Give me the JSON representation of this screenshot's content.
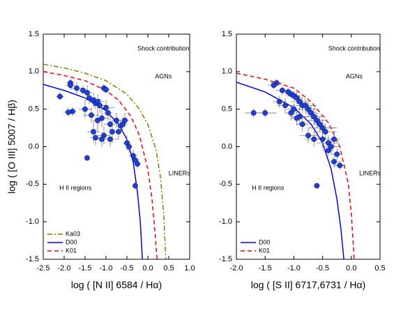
{
  "chart_data": [
    {
      "type": "scatter",
      "xlabel": "log ( [N II] 6584 / Hα)",
      "ylabel": "log ( [O III] 5007 / Hβ)",
      "xlim": [
        -2.5,
        1.0
      ],
      "ylim": [
        -1.5,
        1.5
      ],
      "xticks": [
        -2.5,
        {
          "value": -2,
          "label": "-2.0"
        },
        -1.5,
        {
          "value": -1,
          "label": "-1.0"
        },
        -0.5,
        {
          "value": 0,
          "label": "0.0"
        },
        0.5,
        {
          "value": 1,
          "label": "1.0"
        }
      ],
      "yticks": [
        -1.5,
        {
          "value": -1,
          "label": "-1.0"
        },
        -0.5,
        {
          "value": 0,
          "label": "0.0"
        },
        0.5,
        {
          "value": 1,
          "label": "1.0"
        },
        1.5
      ],
      "annotations": [
        "Shock contribution",
        "AGNs",
        "LINERs",
        "H II regions"
      ],
      "legend": "lower left",
      "series": [
        {
          "name": "Ka03",
          "color": "#808000",
          "style": "dashdot",
          "x": [
            -2.5,
            -2.0,
            -1.5,
            -1.0,
            -0.5,
            -0.2,
            0.0,
            0.2,
            0.3,
            0.38,
            0.43
          ],
          "values": [
            1.1,
            1.05,
            0.98,
            0.88,
            0.7,
            0.5,
            0.3,
            -0.05,
            -0.4,
            -0.9,
            -1.5
          ]
        },
        {
          "name": "D00",
          "color": "#0000ff",
          "style": "solid",
          "x": [
            -2.5,
            -2.0,
            -1.5,
            -1.0,
            -0.7,
            -0.5,
            -0.35,
            -0.25,
            -0.18,
            -0.13
          ],
          "values": [
            0.83,
            0.75,
            0.65,
            0.48,
            0.3,
            0.1,
            -0.2,
            -0.6,
            -1.0,
            -1.5
          ]
        },
        {
          "name": "K01",
          "color": "#ff0000",
          "style": "dashed",
          "x": [
            -2.5,
            -2.0,
            -1.5,
            -1.0,
            -0.7,
            -0.4,
            -0.2,
            0.0,
            0.1,
            0.18,
            0.22
          ],
          "values": [
            1.0,
            0.95,
            0.88,
            0.75,
            0.62,
            0.4,
            0.15,
            -0.3,
            -0.7,
            -1.2,
            -1.5
          ]
        }
      ],
      "points": {
        "color": "#1f3fd6",
        "x": [
          -2.1,
          -1.85,
          -1.85,
          -1.7,
          -1.55,
          -1.45,
          -1.4,
          -1.3,
          -1.25,
          -1.2,
          -1.15,
          -1.05,
          -1.0,
          -1.8,
          -1.9,
          -1.5,
          -1.35,
          -1.2,
          -1.1,
          -1.0,
          -0.95,
          -0.9,
          -0.85,
          -0.75,
          -1.3,
          -1.25,
          -1.05,
          -0.9,
          -0.7,
          -0.65,
          -0.6,
          -0.5,
          -0.45,
          -0.35,
          -0.3,
          -0.25,
          -0.3,
          -1.45,
          -1.1,
          -0.55
        ],
        "values": [
          0.67,
          0.85,
          0.82,
          0.78,
          0.75,
          0.72,
          0.65,
          0.62,
          0.58,
          0.6,
          0.55,
          0.78,
          0.76,
          0.47,
          0.46,
          0.5,
          0.42,
          0.35,
          0.38,
          0.52,
          0.45,
          0.3,
          0.2,
          0.35,
          0.2,
          0.12,
          0.15,
          0.1,
          0.2,
          0.28,
          0.3,
          0.05,
          0.0,
          -0.12,
          -0.18,
          -0.23,
          -0.52,
          -0.15,
          0.1,
          0.35
        ],
        "xerr": [
          0.1,
          0.1,
          0.12,
          0.15,
          0.1,
          0.12,
          0.15,
          0.2,
          0.1,
          0.15,
          0.12,
          0.1,
          0.1,
          0.1,
          0.12,
          0.15,
          0.2,
          0.1,
          0.15,
          0.2,
          0.1,
          0.15,
          0.1,
          0.1,
          0.15,
          0.12,
          0.15,
          0.2,
          0.1,
          0.1,
          0.12,
          0.1,
          0.08,
          0.1,
          0.1,
          0.08,
          0.05,
          0.05,
          0.1,
          0.1
        ],
        "yerr": [
          0.05,
          0.06,
          0.06,
          0.08,
          0.06,
          0.1,
          0.08,
          0.1,
          0.08,
          0.1,
          0.1,
          0.05,
          0.05,
          0.06,
          0.06,
          0.12,
          0.1,
          0.15,
          0.12,
          0.1,
          0.1,
          0.12,
          0.15,
          0.1,
          0.15,
          0.1,
          0.12,
          0.1,
          0.1,
          0.08,
          0.1,
          0.1,
          0.08,
          0.08,
          0.06,
          0.06,
          0.05,
          0.03,
          0.1,
          0.1
        ]
      }
    },
    {
      "type": "scatter",
      "xlabel": "log ( [S II] 6717,6731 / Hα)",
      "xlim": [
        -2.0,
        0.5
      ],
      "ylim": [
        -1.5,
        1.5
      ],
      "xticks": [
        {
          "value": -2,
          "label": "-2.0"
        },
        -1.5,
        {
          "value": -1,
          "label": "-1.0"
        },
        -0.5,
        {
          "value": 0,
          "label": "0.0"
        },
        0.5
      ],
      "yticks": [
        -1.5,
        {
          "value": -1,
          "label": "-1.0"
        },
        -0.5,
        {
          "value": 0,
          "label": "0.0"
        },
        0.5,
        {
          "value": 1,
          "label": "1.0"
        },
        1.5
      ],
      "annotations": [
        "Shock contribution",
        "AGNs",
        "LINERs",
        "H II regions"
      ],
      "legend": "lower left",
      "series": [
        {
          "name": "D00",
          "color": "#0000ff",
          "style": "solid",
          "x": [
            -2.0,
            -1.5,
            -1.0,
            -0.7,
            -0.5,
            -0.35,
            -0.25,
            -0.18,
            -0.13
          ],
          "values": [
            0.86,
            0.73,
            0.52,
            0.3,
            0.05,
            -0.3,
            -0.7,
            -1.1,
            -1.5
          ]
        },
        {
          "name": "K01",
          "color": "#ff0000",
          "style": "dashed",
          "x": [
            -2.0,
            -1.5,
            -1.0,
            -0.7,
            -0.4,
            -0.2,
            -0.05,
            0.0,
            0.05
          ],
          "values": [
            0.98,
            0.9,
            0.78,
            0.6,
            0.32,
            0.0,
            -0.5,
            -0.9,
            -1.5
          ]
        }
      ],
      "points": {
        "color": "#1f3fd6",
        "x": [
          -1.3,
          -1.35,
          -1.2,
          -1.1,
          -1.05,
          -1.0,
          -0.95,
          -0.9,
          -0.85,
          -1.25,
          -1.15,
          -1.05,
          -1.0,
          -0.9,
          -0.8,
          -0.75,
          -0.7,
          -0.65,
          -0.6,
          -0.55,
          -0.5,
          -0.45,
          -0.5,
          -0.4,
          -0.3,
          -0.35,
          -0.25,
          -0.3,
          -0.2,
          -0.75,
          -0.85,
          -1.5,
          -1.7,
          -0.95,
          -0.6,
          -0.4,
          -0.65
        ],
        "values": [
          0.85,
          0.82,
          0.75,
          0.73,
          0.7,
          0.68,
          0.65,
          0.6,
          0.55,
          0.6,
          0.55,
          0.45,
          0.5,
          0.4,
          0.55,
          0.5,
          0.45,
          0.4,
          0.35,
          0.3,
          0.25,
          0.2,
          0.1,
          0.05,
          0.1,
          0.0,
          -0.1,
          -0.2,
          -0.25,
          0.15,
          0.3,
          0.45,
          0.45,
          0.38,
          -0.52,
          -0.05,
          0.1
        ],
        "xerr": [
          0.1,
          0.1,
          0.12,
          0.1,
          0.1,
          0.12,
          0.1,
          0.15,
          0.1,
          0.12,
          0.15,
          0.1,
          0.12,
          0.15,
          0.2,
          0.15,
          0.1,
          0.2,
          0.15,
          0.1,
          0.25,
          0.2,
          0.15,
          0.2,
          0.1,
          0.15,
          0.1,
          0.1,
          0.1,
          0.15,
          0.1,
          0.2,
          0.15,
          0.1,
          0.05,
          0.1,
          0.15
        ],
        "yerr": [
          0.05,
          0.05,
          0.06,
          0.06,
          0.05,
          0.06,
          0.08,
          0.08,
          0.1,
          0.08,
          0.1,
          0.1,
          0.08,
          0.12,
          0.1,
          0.1,
          0.1,
          0.12,
          0.1,
          0.1,
          0.12,
          0.1,
          0.12,
          0.1,
          0.1,
          0.1,
          0.08,
          0.08,
          0.06,
          0.1,
          0.1,
          0.06,
          0.06,
          0.1,
          0.03,
          0.08,
          0.1
        ]
      }
    }
  ]
}
